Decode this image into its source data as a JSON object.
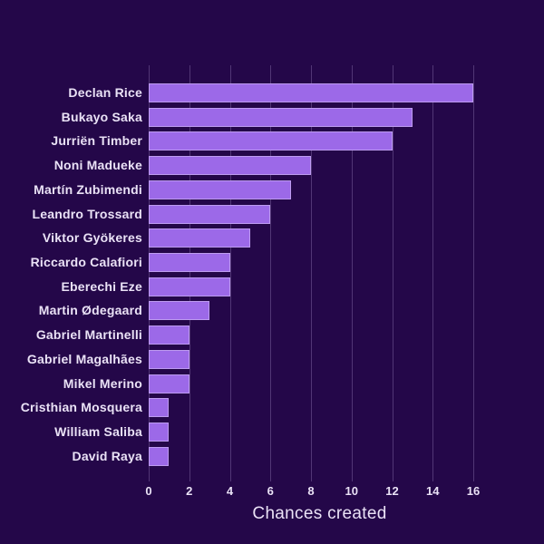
{
  "chart_data": {
    "type": "bar",
    "orientation": "horizontal",
    "title": "",
    "xlabel": "Chances created",
    "categories": [
      "Declan Rice",
      "Bukayo Saka",
      "Jurriën Timber",
      "Noni Madueke",
      "Martín Zubimendi",
      "Leandro Trossard",
      "Viktor Gyökeres",
      "Riccardo Calafiori",
      "Eberechi Eze",
      "Martin Ødegaard",
      "Gabriel Martinelli",
      "Gabriel Magalhães",
      "Mikel Merino",
      "Cristhian Mosquera",
      "William Saliba",
      "David Raya"
    ],
    "values": [
      16,
      13,
      12,
      8,
      7,
      6,
      5,
      4,
      4,
      3,
      2,
      2,
      2,
      1,
      1,
      1
    ],
    "xticks": [
      0,
      2,
      4,
      6,
      8,
      10,
      12,
      14,
      16
    ],
    "xlim": [
      0,
      16.8
    ],
    "grid": "vertical",
    "legend": "none",
    "colors": {
      "background": "#240749",
      "bar": "#9c69e8",
      "text": "#eae2f6",
      "gridline": "rgba(185,165,220,0.3)"
    }
  }
}
